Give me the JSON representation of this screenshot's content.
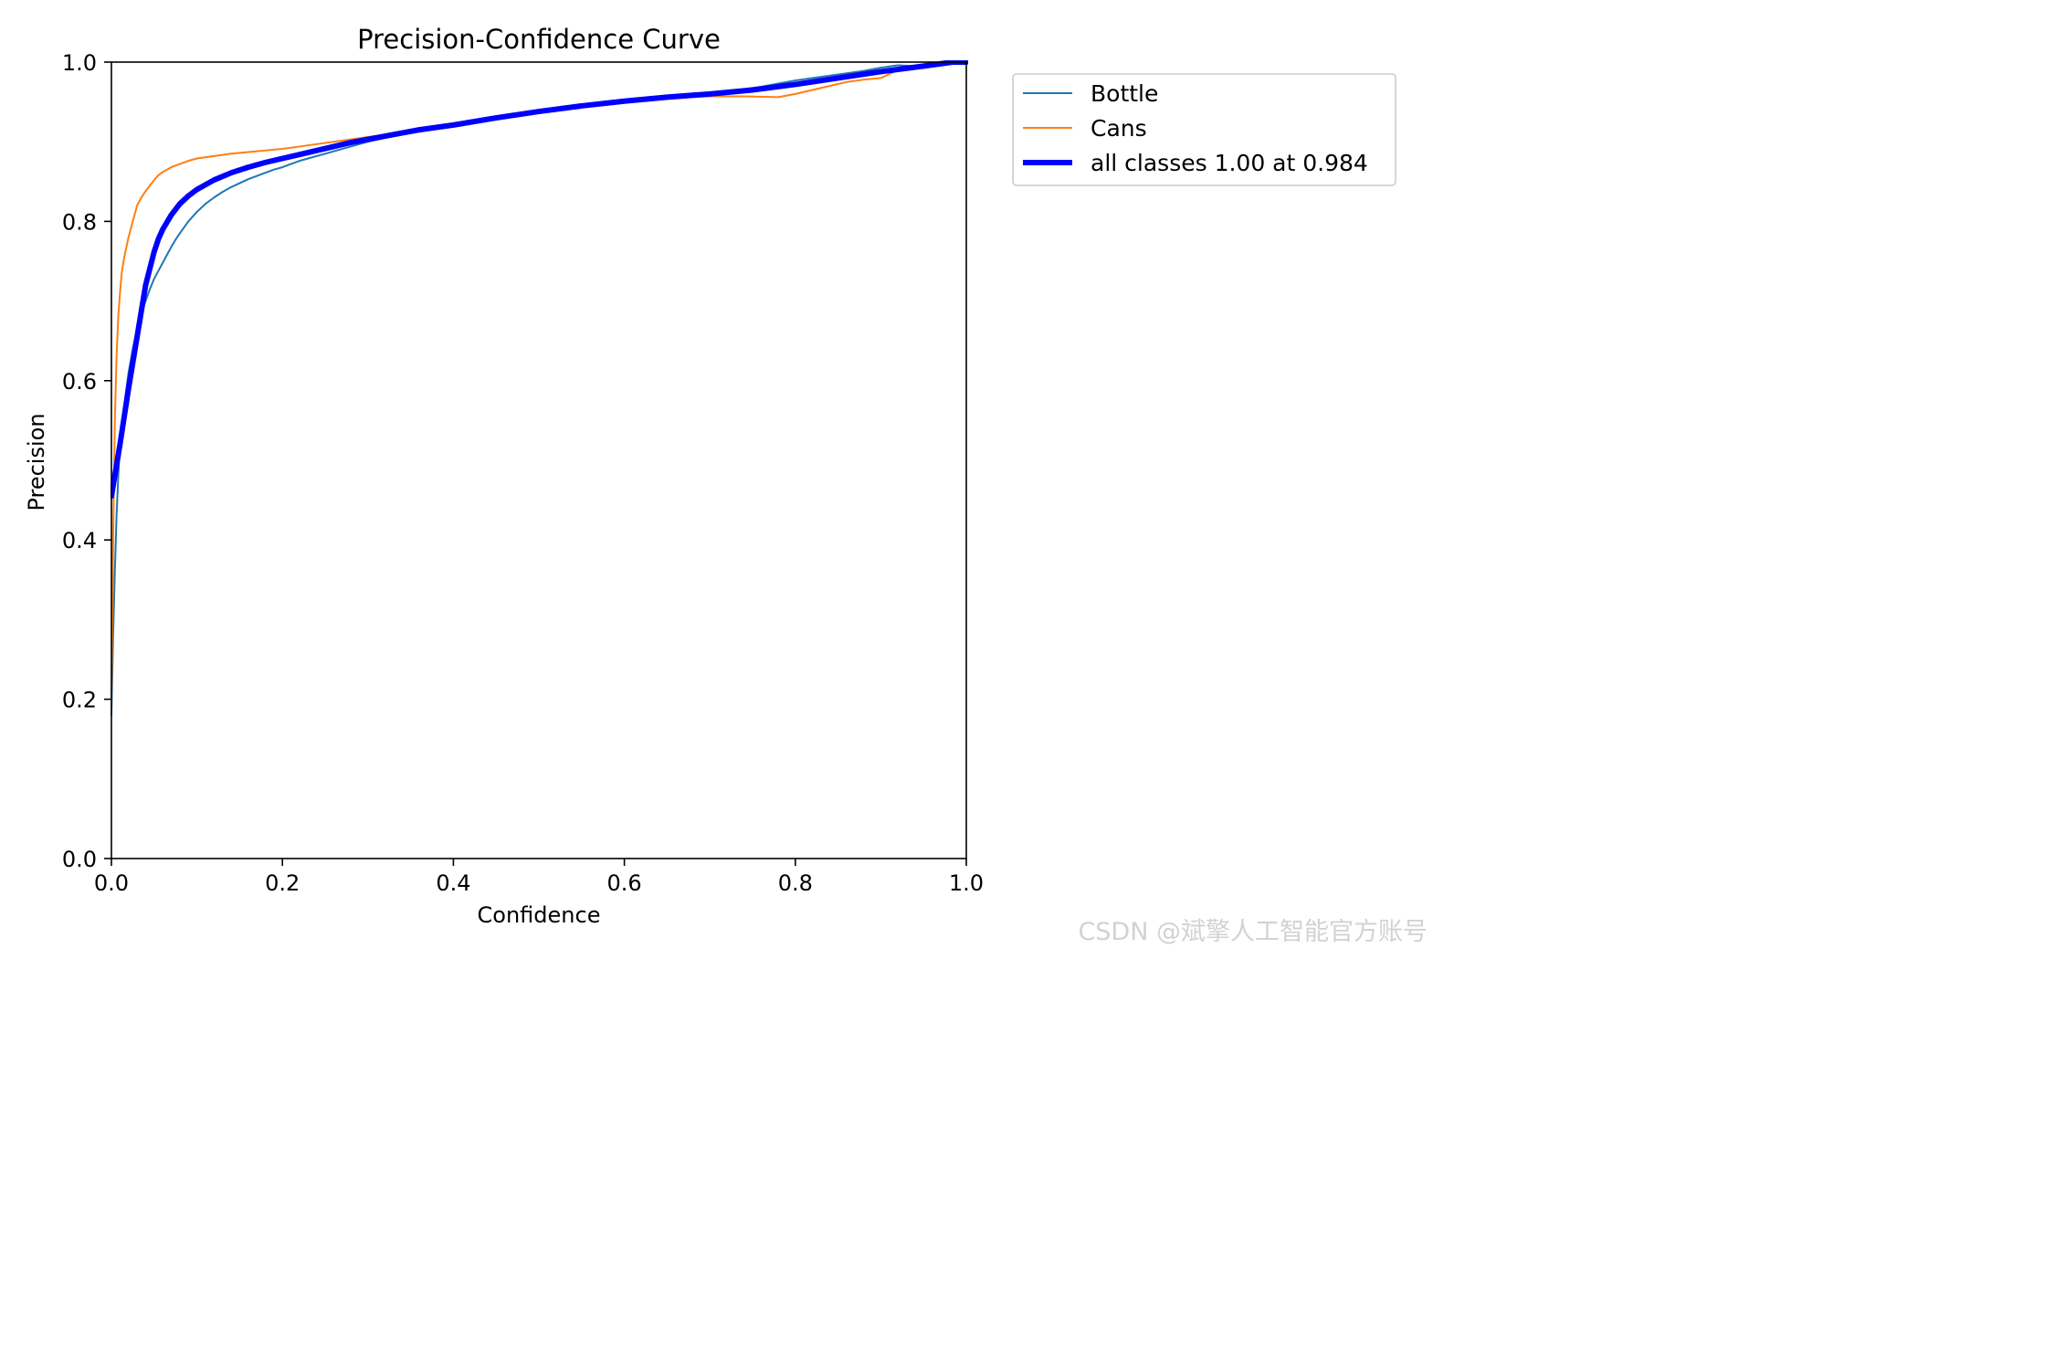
{
  "chart_data": {
    "type": "line",
    "title": "Precision-Confidence Curve",
    "xlabel": "Confidence",
    "ylabel": "Precision",
    "xlim": [
      0,
      1
    ],
    "ylim": [
      0,
      1
    ],
    "xticks": [
      0.0,
      0.2,
      0.4,
      0.6,
      0.8,
      1.0
    ],
    "yticks": [
      0.0,
      0.2,
      0.4,
      0.6,
      0.8,
      1.0
    ],
    "xtick_labels": [
      "0.0",
      "0.2",
      "0.4",
      "0.6",
      "0.8",
      "1.0"
    ],
    "ytick_labels": [
      "0.0",
      "0.2",
      "0.4",
      "0.6",
      "0.8",
      "1.0"
    ],
    "grid": false,
    "legend_position": "outside-top-right",
    "series": [
      {
        "name": "Bottle",
        "color": "#1f77b4",
        "x": [
          0.0,
          0.002,
          0.004,
          0.006,
          0.008,
          0.01,
          0.015,
          0.02,
          0.025,
          0.03,
          0.035,
          0.04,
          0.045,
          0.05,
          0.055,
          0.06,
          0.065,
          0.07,
          0.075,
          0.08,
          0.09,
          0.1,
          0.11,
          0.12,
          0.13,
          0.14,
          0.15,
          0.16,
          0.17,
          0.18,
          0.19,
          0.2,
          0.21,
          0.22,
          0.23,
          0.24,
          0.25,
          0.26,
          0.27,
          0.28,
          0.29,
          0.3,
          0.32,
          0.34,
          0.36,
          0.38,
          0.4,
          0.45,
          0.5,
          0.55,
          0.6,
          0.65,
          0.7,
          0.72,
          0.74,
          0.76,
          0.78,
          0.8,
          0.82,
          0.84,
          0.86,
          0.88,
          0.9,
          0.92,
          0.94,
          0.96,
          0.98,
          1.0
        ],
        "values": [
          0.18,
          0.28,
          0.36,
          0.43,
          0.48,
          0.52,
          0.57,
          0.61,
          0.64,
          0.665,
          0.685,
          0.7,
          0.715,
          0.728,
          0.738,
          0.748,
          0.758,
          0.768,
          0.777,
          0.785,
          0.8,
          0.812,
          0.822,
          0.83,
          0.837,
          0.843,
          0.848,
          0.853,
          0.857,
          0.861,
          0.865,
          0.868,
          0.872,
          0.876,
          0.879,
          0.882,
          0.885,
          0.888,
          0.891,
          0.894,
          0.897,
          0.9,
          0.905,
          0.91,
          0.914,
          0.918,
          0.921,
          0.93,
          0.938,
          0.945,
          0.951,
          0.956,
          0.961,
          0.963,
          0.966,
          0.969,
          0.973,
          0.977,
          0.98,
          0.983,
          0.986,
          0.989,
          0.993,
          0.996,
          0.995,
          0.997,
          0.999,
          1.0
        ]
      },
      {
        "name": "Cans",
        "color": "#ff7f0e",
        "x": [
          0.0,
          0.002,
          0.004,
          0.006,
          0.008,
          0.01,
          0.012,
          0.015,
          0.02,
          0.025,
          0.03,
          0.035,
          0.04,
          0.045,
          0.05,
          0.055,
          0.06,
          0.07,
          0.08,
          0.09,
          0.1,
          0.12,
          0.14,
          0.16,
          0.18,
          0.2,
          0.22,
          0.24,
          0.26,
          0.28,
          0.3,
          0.32,
          0.34,
          0.36,
          0.38,
          0.4,
          0.45,
          0.5,
          0.55,
          0.6,
          0.65,
          0.7,
          0.74,
          0.78,
          0.8,
          0.82,
          0.84,
          0.86,
          0.88,
          0.9,
          0.91,
          0.92,
          0.94,
          0.96,
          0.98,
          1.0
        ],
        "values": [
          0.2,
          0.4,
          0.55,
          0.63,
          0.68,
          0.71,
          0.735,
          0.755,
          0.78,
          0.8,
          0.82,
          0.83,
          0.838,
          0.845,
          0.852,
          0.858,
          0.862,
          0.868,
          0.872,
          0.876,
          0.879,
          0.882,
          0.885,
          0.887,
          0.889,
          0.891,
          0.894,
          0.897,
          0.9,
          0.903,
          0.906,
          0.909,
          0.912,
          0.915,
          0.918,
          0.921,
          0.93,
          0.938,
          0.945,
          0.951,
          0.955,
          0.957,
          0.957,
          0.956,
          0.96,
          0.965,
          0.97,
          0.975,
          0.978,
          0.98,
          0.985,
          0.99,
          0.995,
          0.998,
          0.999,
          1.0
        ]
      },
      {
        "name": "all classes 1.00 at 0.984",
        "color": "#0000ff",
        "bold": true,
        "x": [
          0.0,
          0.01,
          0.02,
          0.03,
          0.04,
          0.05,
          0.055,
          0.06,
          0.07,
          0.08,
          0.09,
          0.1,
          0.12,
          0.14,
          0.16,
          0.18,
          0.2,
          0.22,
          0.24,
          0.26,
          0.28,
          0.3,
          0.32,
          0.34,
          0.36,
          0.38,
          0.4,
          0.45,
          0.5,
          0.55,
          0.6,
          0.65,
          0.7,
          0.75,
          0.8,
          0.85,
          0.9,
          0.95,
          0.984,
          1.0
        ],
        "values": [
          0.455,
          0.52,
          0.59,
          0.655,
          0.72,
          0.762,
          0.778,
          0.79,
          0.808,
          0.822,
          0.832,
          0.84,
          0.852,
          0.861,
          0.868,
          0.874,
          0.879,
          0.884,
          0.889,
          0.894,
          0.899,
          0.903,
          0.907,
          0.911,
          0.915,
          0.918,
          0.921,
          0.93,
          0.938,
          0.945,
          0.951,
          0.956,
          0.96,
          0.965,
          0.972,
          0.98,
          0.988,
          0.995,
          1.0,
          1.0
        ]
      }
    ]
  },
  "watermark": "CSDN @斌擎人工智能官方账号"
}
